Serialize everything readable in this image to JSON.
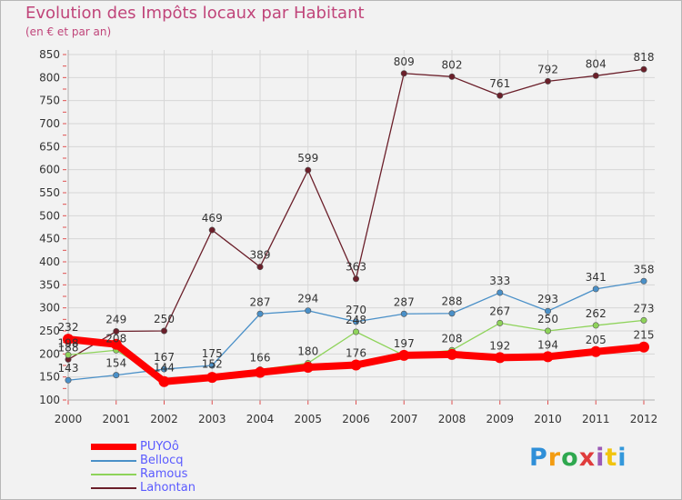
{
  "header": {
    "title": "Evolution des Impôts locaux par Habitant",
    "subtitle": "(en € et par an)"
  },
  "brand": {
    "text": "Proxiti",
    "colors": [
      "#2f8fd8",
      "#f39c12",
      "#2fa84f",
      "#e03c3c",
      "#9b59b6",
      "#f1c40f",
      "#3498db"
    ]
  },
  "chart_data": {
    "type": "line",
    "title": "Evolution des Impôts locaux par Habitant",
    "subtitle": "(en € et par an)",
    "x": [
      "2000",
      "2001",
      "2002",
      "2003",
      "2004",
      "2005",
      "2006",
      "2007",
      "2008",
      "2009",
      "2010",
      "2011",
      "2012"
    ],
    "ylim": [
      100,
      850
    ],
    "yticks": [
      100,
      150,
      200,
      250,
      300,
      350,
      400,
      450,
      500,
      550,
      600,
      650,
      700,
      750,
      800,
      850
    ],
    "grid": true,
    "legend": "bottom-left",
    "series": [
      {
        "name": "PUYOô",
        "color": "#ff0000",
        "values": [
          232,
          221,
          140,
          149,
          160,
          171,
          176,
          197,
          199,
          192,
          194,
          205,
          215
        ],
        "labels": [
          "232",
          "",
          "",
          "",
          "",
          "",
          "176",
          "",
          "",
          "192",
          "194",
          "205",
          "215"
        ]
      },
      {
        "name": "Bellocq",
        "color": "#4a90c8",
        "values": [
          143,
          154,
          167,
          175,
          287,
          294,
          270,
          287,
          288,
          333,
          293,
          341,
          358
        ],
        "labels": [
          "143",
          "154",
          "167",
          "175",
          "287",
          "294",
          "270",
          "287",
          "288",
          "333",
          "293",
          "341",
          "358"
        ]
      },
      {
        "name": "Ramous",
        "color": "#8ed35a",
        "values": [
          198,
          208,
          144,
          152,
          166,
          180,
          248,
          197,
          208,
          267,
          250,
          262,
          273
        ],
        "labels": [
          "198",
          "208",
          "144",
          "152",
          "166",
          "180",
          "248",
          "197",
          "208",
          "267",
          "250",
          "262",
          "273"
        ]
      },
      {
        "name": "Lahontan",
        "color": "#6b1f2a",
        "values": [
          188,
          249,
          250,
          469,
          389,
          599,
          363,
          809,
          802,
          761,
          792,
          804,
          818
        ],
        "labels": [
          "188",
          "249",
          "250",
          "469",
          "389",
          "599",
          "363",
          "809",
          "802",
          "761",
          "792",
          "804",
          "818"
        ]
      }
    ]
  }
}
